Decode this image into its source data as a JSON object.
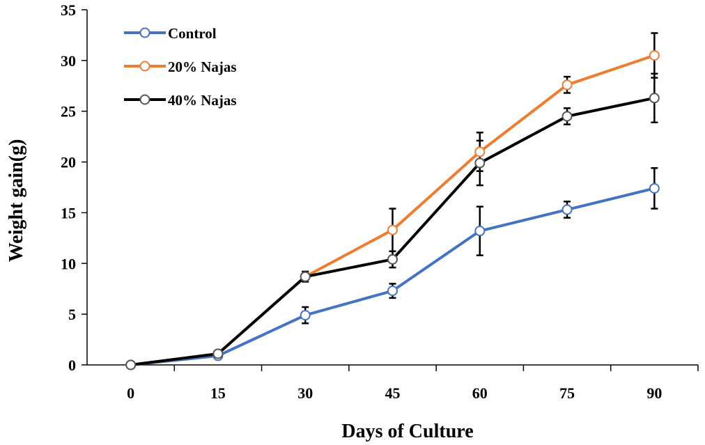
{
  "chart_data": {
    "type": "line",
    "title": "",
    "xlabel": "Days of Culture",
    "ylabel": "Weight gain(g)",
    "x": [
      0,
      15,
      30,
      45,
      60,
      75,
      90
    ],
    "x_tick_labels": [
      "0",
      "15",
      "30",
      "45",
      "60",
      "75",
      "90"
    ],
    "y_tick_labels": [
      "0",
      "5",
      "10",
      "15",
      "20",
      "25",
      "30",
      "35"
    ],
    "ylim": [
      0,
      35
    ],
    "y_ticks": [
      0,
      5,
      10,
      15,
      20,
      25,
      30,
      35
    ],
    "grid": false,
    "legend_position": "top-left",
    "series": [
      {
        "name": "Control",
        "color": "#4472C4",
        "values": [
          0,
          0.9,
          4.9,
          7.3,
          13.2,
          15.3,
          17.4
        ],
        "errors": [
          0,
          0,
          0.8,
          0.7,
          2.4,
          0.8,
          2.0
        ]
      },
      {
        "name": "20% Najas",
        "color": "#ED7D31",
        "values": [
          0,
          1.1,
          8.7,
          13.3,
          21.0,
          27.6,
          30.5
        ],
        "errors": [
          0,
          0,
          0,
          2.1,
          1.9,
          0.8,
          2.2
        ]
      },
      {
        "name": "40% Najas",
        "color": "#000000",
        "values": [
          0,
          1.1,
          8.7,
          10.4,
          19.9,
          24.5,
          26.3
        ],
        "errors": [
          0,
          0,
          0.5,
          0.8,
          2.2,
          0.8,
          2.4
        ]
      }
    ]
  }
}
